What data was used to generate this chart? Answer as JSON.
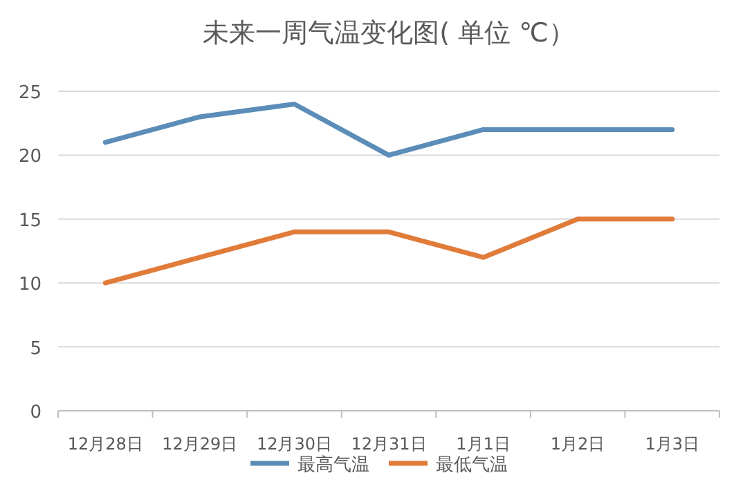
{
  "chart_data": {
    "type": "line",
    "title": "未来一周气温变化图( 单位 ℃）",
    "categories": [
      "12月28日",
      "12月29日",
      "12月30日",
      "12月31日",
      "1月1日",
      "1月2日",
      "1月3日"
    ],
    "series": [
      {
        "name": "最高气温",
        "color": "#5b8db8",
        "values": [
          21,
          23,
          24,
          20,
          22,
          22,
          22
        ]
      },
      {
        "name": "最低气温",
        "color": "#e07b39",
        "values": [
          10,
          12,
          14,
          14,
          12,
          15,
          15
        ]
      }
    ],
    "ylim": [
      0,
      25
    ],
    "yticks": [
      0,
      5,
      10,
      15,
      20,
      25
    ],
    "grid": "y",
    "legend": "bottom",
    "marker": "none",
    "line_style": "solid"
  }
}
